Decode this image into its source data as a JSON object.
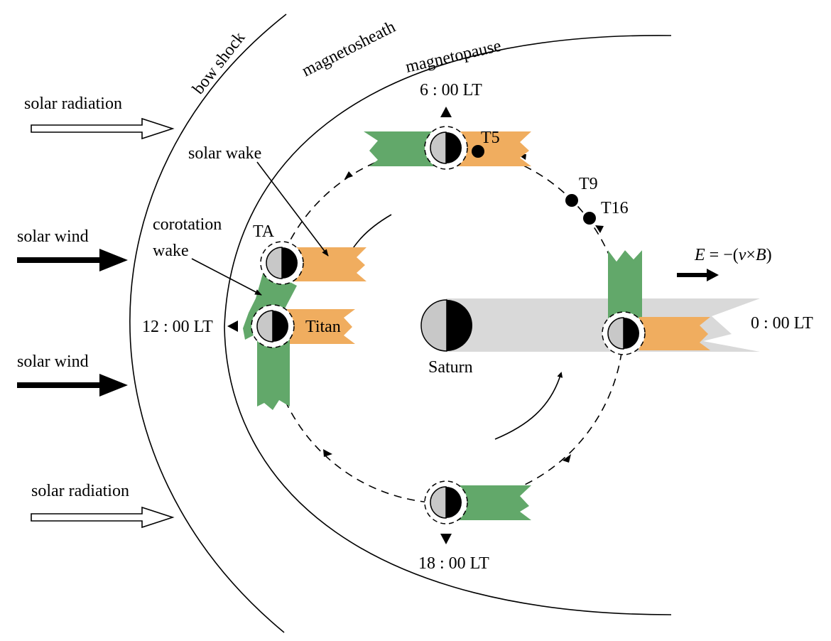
{
  "labels": {
    "bow_shock": "bow shock",
    "magnetosheath": "magnetosheath",
    "magnetopause": "magnetopause",
    "solar_radiation_top": "solar radiation",
    "solar_radiation_bottom": "solar radiation",
    "solar_wind_top": "solar wind",
    "solar_wind_bottom": "solar wind",
    "solar_wake": "solar wake",
    "corotation_wake_line1": "corotation",
    "corotation_wake_line2": "wake",
    "ta": "TA",
    "titan": "Titan",
    "saturn": "Saturn",
    "lt_6": "6 : 00 LT",
    "lt_12": "12 : 00 LT",
    "lt_18": "18 : 00 LT",
    "lt_0": "0 : 00 LT",
    "t5": "T5",
    "t9": "T9",
    "t16": "T16",
    "efield_E": "E",
    "efield_eq": " = −(",
    "efield_v": "v",
    "efield_x": "×",
    "efield_B": "B",
    "efield_close": ")"
  },
  "colors": {
    "corotation_wake": "#62a86a",
    "solar_wake": "#f0ad5f",
    "saturn_shadow": "#d9d9d9",
    "dayside": "#c8c8c8",
    "nightside": "#000000"
  }
}
